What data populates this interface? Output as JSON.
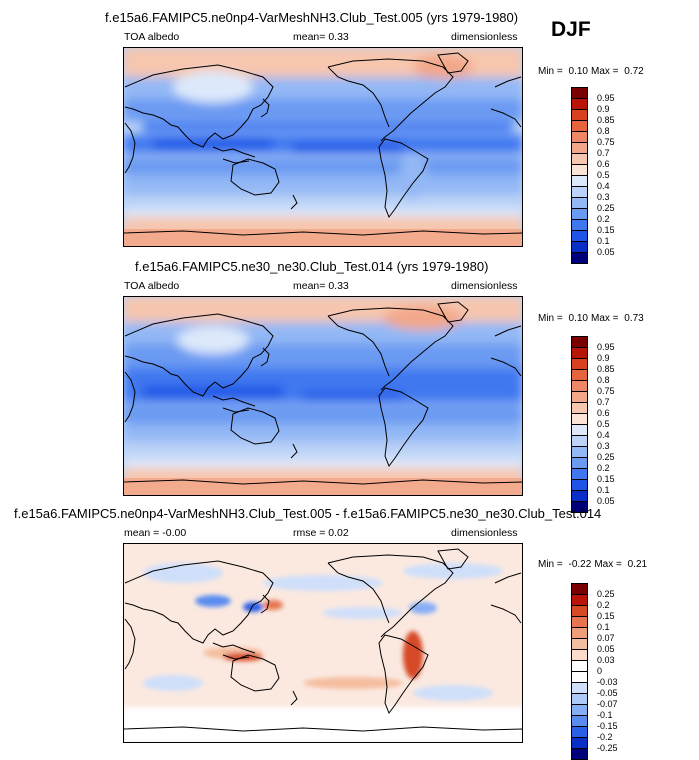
{
  "season": "DJF",
  "panels": [
    {
      "title": "f.e15a6.FAMIPC5.ne0np4-VarMeshNH3.Club_Test.005 (yrs 1979-1980)",
      "left_label": "TOA albedo",
      "center_label": "mean=  0.33",
      "right_label": "dimensionless",
      "min_label": "Min = ",
      "min_value": "0.10",
      "max_label": "Max = ",
      "max_value": "0.72",
      "levels": [
        "0.95",
        "0.9",
        "0.85",
        "0.8",
        "0.75",
        "0.7",
        "0.6",
        "0.5",
        "0.4",
        "0.3",
        "0.25",
        "0.2",
        "0.15",
        "0.1",
        "0.05"
      ]
    },
    {
      "title": "f.e15a6.FAMIPC5.ne30_ne30.Club_Test.014 (yrs 1979-1980)",
      "left_label": "TOA albedo",
      "center_label": "mean=  0.33",
      "right_label": "dimensionless",
      "min_label": "Min = ",
      "min_value": "0.10",
      "max_label": "Max = ",
      "max_value": "0.73",
      "levels": [
        "0.95",
        "0.9",
        "0.85",
        "0.8",
        "0.75",
        "0.7",
        "0.6",
        "0.5",
        "0.4",
        "0.3",
        "0.25",
        "0.2",
        "0.15",
        "0.1",
        "0.05"
      ]
    },
    {
      "title": "f.e15a6.FAMIPC5.ne0np4-VarMeshNH3.Club_Test.005 - f.e15a6.FAMIPC5.ne30_ne30.Club_Test.014",
      "left_label": "mean = -0.00",
      "center_label": "rmse =  0.02",
      "right_label": "dimensionless",
      "min_label": "Min = ",
      "min_value": "-0.22",
      "max_label": "Max = ",
      "max_value": "0.21",
      "levels": [
        "0.25",
        "0.2",
        "0.15",
        "0.1",
        "0.07",
        "0.05",
        "0.03",
        "0",
        "-0.03",
        "-0.05",
        "-0.07",
        "-0.1",
        "-0.15",
        "-0.2",
        "-0.25"
      ]
    }
  ],
  "colors": {
    "abs_scale": [
      "#00007a",
      "#0a2ec8",
      "#1f55e6",
      "#3f78f0",
      "#6b9af2",
      "#93b8f5",
      "#bcd3f7",
      "#dde9fb",
      "#fbe3d6",
      "#f7c6ae",
      "#f3a789",
      "#ee8765",
      "#e6653f",
      "#d8401f",
      "#b81508",
      "#7a0000"
    ],
    "diff_scale": [
      "#00007a",
      "#0a2ec8",
      "#2a5fe8",
      "#5a8cf0",
      "#86aef4",
      "#adc9f7",
      "#cfdffa",
      "#ffffff",
      "#ffffff",
      "#fbdccb",
      "#f5bd9f",
      "#ef9c78",
      "#e77650",
      "#d64a25",
      "#b81508",
      "#7a0000"
    ]
  },
  "chart_data": [
    {
      "type": "heatmap",
      "title": "f.e15a6.FAMIPC5.ne0np4-VarMeshNH3.Club_Test.005 (yrs 1979-1980)",
      "variable": "TOA albedo",
      "units": "dimensionless",
      "mean": 0.33,
      "min": 0.1,
      "max": 0.72,
      "contour_levels": [
        0.05,
        0.1,
        0.15,
        0.2,
        0.25,
        0.3,
        0.4,
        0.5,
        0.6,
        0.7,
        0.75,
        0.8,
        0.85,
        0.9,
        0.95
      ],
      "projection": "cylindrical-equidistant-pacific-centered"
    },
    {
      "type": "heatmap",
      "title": "f.e15a6.FAMIPC5.ne30_ne30.Club_Test.014 (yrs 1979-1980)",
      "variable": "TOA albedo",
      "units": "dimensionless",
      "mean": 0.33,
      "min": 0.1,
      "max": 0.73,
      "contour_levels": [
        0.05,
        0.1,
        0.15,
        0.2,
        0.25,
        0.3,
        0.4,
        0.5,
        0.6,
        0.7,
        0.75,
        0.8,
        0.85,
        0.9,
        0.95
      ],
      "projection": "cylindrical-equidistant-pacific-centered"
    },
    {
      "type": "heatmap",
      "title": "f.e15a6.FAMIPC5.ne0np4-VarMeshNH3.Club_Test.005 - f.e15a6.FAMIPC5.ne30_ne30.Club_Test.014",
      "units": "dimensionless",
      "mean": -0.0,
      "rmse": 0.02,
      "min": -0.22,
      "max": 0.21,
      "contour_levels": [
        -0.25,
        -0.2,
        -0.15,
        -0.1,
        -0.07,
        -0.05,
        -0.03,
        0,
        0.03,
        0.05,
        0.07,
        0.1,
        0.15,
        0.2,
        0.25
      ],
      "projection": "cylindrical-equidistant-pacific-centered"
    }
  ]
}
